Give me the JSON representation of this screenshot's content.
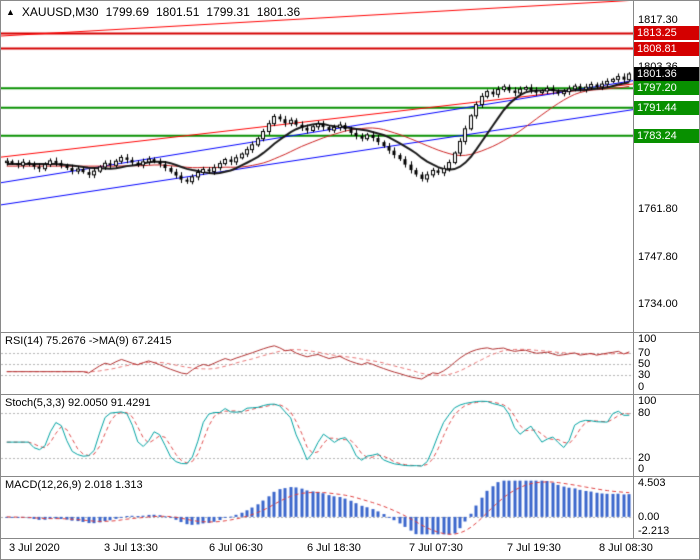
{
  "info_bar": {
    "symbol": "XAUUSD,M30",
    "open": "1799.69",
    "high": "1801.51",
    "low": "1799.31",
    "close": "1801.36"
  },
  "chart_data": {
    "type": "candlestick",
    "symbol": "XAUUSD",
    "timeframe": "M30",
    "price_axis": {
      "min": 1727.5,
      "max": 1821.0,
      "ticks": [
        {
          "price": 1817.3,
          "label": "1817.30"
        },
        {
          "price": 1803.36,
          "label": "1803.36"
        },
        {
          "price": 1761.8,
          "label": "1761.80"
        },
        {
          "price": 1747.8,
          "label": "1747.80"
        },
        {
          "price": 1734.0,
          "label": "1734.00"
        }
      ]
    },
    "levels": [
      {
        "price": 1813.25,
        "label": "1813.25",
        "color": "#d40000",
        "line": true
      },
      {
        "price": 1808.81,
        "label": "1808.81",
        "color": "#d40000",
        "line": true
      },
      {
        "price": 1801.36,
        "label": "1801.36",
        "color": "#000000",
        "line": false
      },
      {
        "price": 1797.2,
        "label": "1797.20",
        "color": "#089000",
        "line": true
      },
      {
        "price": 1791.44,
        "label": "1791.44",
        "color": "#089000",
        "line": true
      },
      {
        "price": 1783.24,
        "label": "1783.24",
        "color": "#089000",
        "line": true
      }
    ],
    "trendlines": [
      {
        "x1": 0,
        "p1": 1812.5,
        "x2": 1,
        "p2": 1823.0,
        "color": "#ff0000"
      },
      {
        "x1": 0,
        "p1": 1777.0,
        "x2": 1,
        "p2": 1798.5,
        "color": "#ff0000"
      },
      {
        "x1": 0,
        "p1": 1769.5,
        "x2": 1,
        "p2": 1799.5,
        "color": "#0000ff"
      },
      {
        "x1": 0,
        "p1": 1763.0,
        "x2": 1,
        "p2": 1791.0,
        "color": "#0000ff"
      }
    ],
    "closes": [
      1775.8,
      1775.2,
      1774.6,
      1775.5,
      1774.9,
      1774.2,
      1773.6,
      1774.8,
      1775.9,
      1775.3,
      1774.5,
      1773.8,
      1772.9,
      1773.5,
      1772.6,
      1771.8,
      1772.9,
      1774.1,
      1775.2,
      1774.6,
      1775.8,
      1776.9,
      1776.2,
      1775.4,
      1774.7,
      1775.6,
      1776.4,
      1775.7,
      1774.9,
      1773.8,
      1772.7,
      1771.6,
      1770.4,
      1769.8,
      1771.2,
      1772.5,
      1773.4,
      1772.8,
      1773.9,
      1775.1,
      1776.3,
      1775.6,
      1776.8,
      1777.9,
      1779.2,
      1780.6,
      1782.4,
      1784.5,
      1786.8,
      1788.9,
      1788.1,
      1786.9,
      1787.8,
      1786.5,
      1785.6,
      1784.8,
      1785.9,
      1786.7,
      1785.8,
      1784.9,
      1785.7,
      1786.4,
      1785.2,
      1784.1,
      1783.2,
      1782.4,
      1783.5,
      1782.6,
      1781.4,
      1780.2,
      1778.9,
      1777.6,
      1776.4,
      1774.8,
      1773.2,
      1771.9,
      1770.6,
      1771.8,
      1773.1,
      1772.4,
      1773.6,
      1775.4,
      1778.2,
      1781.6,
      1785.3,
      1789.1,
      1792.4,
      1794.8,
      1796.2,
      1795.4,
      1796.8,
      1797.6,
      1796.5,
      1795.8,
      1796.9,
      1797.4,
      1796.6,
      1795.9,
      1796.4,
      1797.1,
      1796.3,
      1795.6,
      1796.2,
      1797.0,
      1797.8,
      1796.9,
      1797.5,
      1798.3,
      1797.6,
      1798.4,
      1799.2,
      1799.8,
      1800.6,
      1799.7,
      1801.36
    ],
    "ma_fast_period": 10,
    "ma_slow_period": 21,
    "indicators": {
      "rsi": {
        "label": "RSI(14) 75.2676  ->MA(9) 67.2415",
        "period": 14,
        "ma_period": 9,
        "levels": [
          70,
          50,
          30
        ],
        "axis": [
          {
            "v": 100,
            "label": "100"
          },
          {
            "v": 70,
            "label": "70"
          },
          {
            "v": 50,
            "label": "50"
          },
          {
            "v": 30,
            "label": "30"
          },
          {
            "v": 0,
            "label": "0"
          }
        ],
        "color": "#b03030",
        "ma_color": "#e87878"
      },
      "stoch": {
        "label": "Stoch(5,3,3) 92.0050 91.4291",
        "k_period": 5,
        "slowing": 3,
        "d_period": 3,
        "levels": [
          80,
          20
        ],
        "axis": [
          {
            "v": 100,
            "label": "100"
          },
          {
            "v": 80,
            "label": "80"
          },
          {
            "v": 20,
            "label": "20"
          },
          {
            "v": 0,
            "label": "0"
          }
        ],
        "k_color": "#00a3a3",
        "d_color": "#e05050"
      },
      "macd": {
        "label": "MACD(12,26,9) 2.018 1.313",
        "fast": 12,
        "slow": 26,
        "signal": 9,
        "scale_min": -2.213,
        "scale_max": 4.503,
        "axis": [
          {
            "v": 4.503,
            "label": "4.503"
          },
          {
            "v": 0,
            "label": "0.00"
          },
          {
            "v": -2.213,
            "label": "-2.213"
          }
        ],
        "hist_color": "#3b66cc",
        "signal_color": "#e04040"
      }
    },
    "time_axis": [
      {
        "x": 0.011,
        "label": "3 Jul 2020"
      },
      {
        "x": 0.147,
        "label": "3 Jul 13:30"
      },
      {
        "x": 0.297,
        "label": "6 Jul 06:30"
      },
      {
        "x": 0.437,
        "label": "6 Jul 18:30"
      },
      {
        "x": 0.583,
        "label": "7 Jul 07:30"
      },
      {
        "x": 0.723,
        "label": "7 Jul 19:30"
      },
      {
        "x": 0.854,
        "label": "8 Jul 08:30"
      }
    ]
  }
}
